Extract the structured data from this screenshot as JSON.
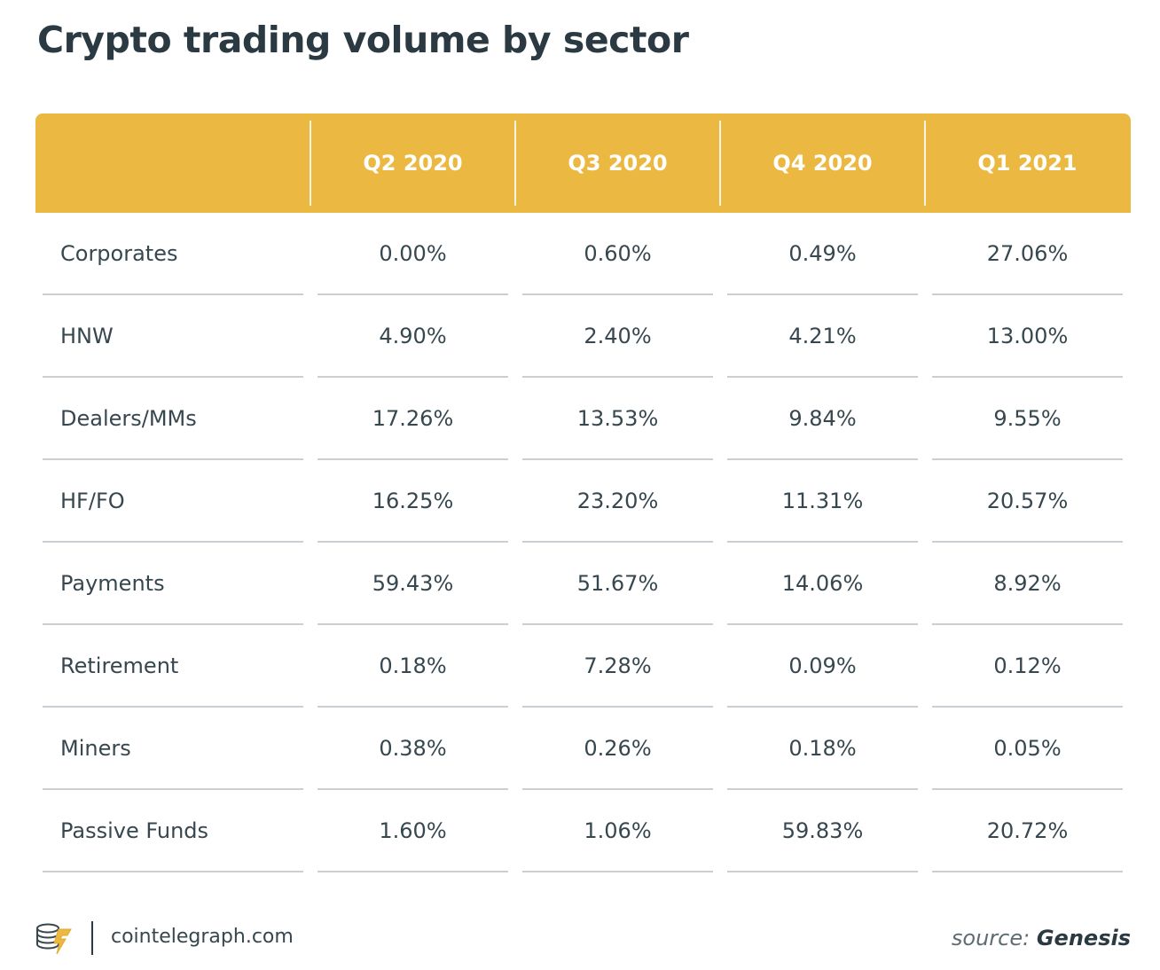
{
  "title": "Crypto trading volume by sector",
  "chart_data": {
    "type": "table",
    "title": "Crypto trading volume by sector",
    "columns": [
      "",
      "Q2 2020",
      "Q3 2020",
      "Q4 2020",
      "Q1 2021"
    ],
    "rows": [
      {
        "label": "Corporates",
        "values": [
          "0.00%",
          "0.60%",
          "0.49%",
          "27.06%"
        ]
      },
      {
        "label": "HNW",
        "values": [
          "4.90%",
          "2.40%",
          "4.21%",
          "13.00%"
        ]
      },
      {
        "label": "Dealers/MMs",
        "values": [
          "17.26%",
          "13.53%",
          "9.84%",
          "9.55%"
        ]
      },
      {
        "label": "HF/FO",
        "values": [
          "16.25%",
          "23.20%",
          "11.31%",
          "20.57%"
        ]
      },
      {
        "label": "Payments",
        "values": [
          "59.43%",
          "51.67%",
          "14.06%",
          "8.92%"
        ]
      },
      {
        "label": "Retirement",
        "values": [
          "0.18%",
          "7.28%",
          "0.09%",
          "0.12%"
        ]
      },
      {
        "label": "Miners",
        "values": [
          "0.38%",
          "0.26%",
          "0.18%",
          "0.05%"
        ]
      },
      {
        "label": "Passive Funds",
        "values": [
          "1.60%",
          "1.06%",
          "59.83%",
          "20.72%"
        ]
      }
    ]
  },
  "footer": {
    "logo_icon": "cointelegraph-logo-icon",
    "site": "cointelegraph.com",
    "source_label": "source: ",
    "source_name": "Genesis"
  },
  "colors": {
    "header_bg": "#ebb842",
    "header_text": "#ffffff",
    "title": "#2b3a42",
    "body_text": "#37474f",
    "rule": "#c9cfd3"
  }
}
